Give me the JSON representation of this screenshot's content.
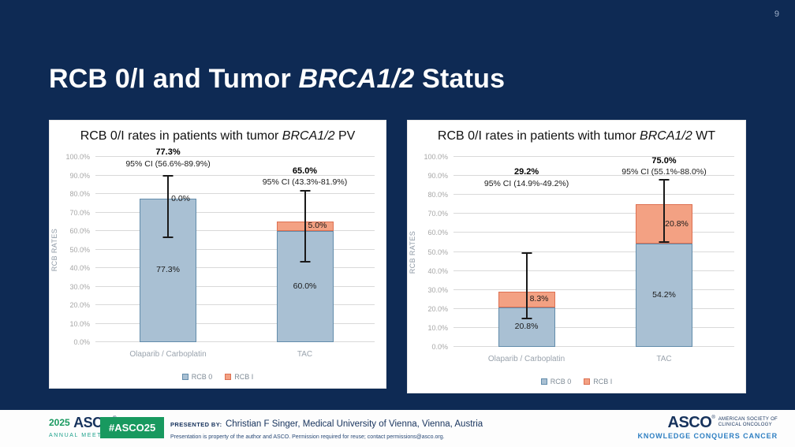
{
  "page": {
    "number": "9"
  },
  "title": {
    "prefix": "RCB 0/I and Tumor ",
    "italic": "BRCA1/2",
    "suffix": " Status"
  },
  "colors": {
    "background": "#0e2a54",
    "rcb0_fill": "#a9c0d3",
    "rcb0_border": "#628cab",
    "rcb1_fill": "#f3a183",
    "rcb1_border": "#dd7052",
    "error_bar": "#1a1a1a",
    "gridline": "#d9d9d9",
    "badge_green": "#18995f",
    "navy_text": "#16325c",
    "tagline_blue": "#2e7fc2"
  },
  "chart_data": [
    {
      "type": "bar",
      "stacked": true,
      "title_prefix": "RCB 0/I rates in patients with tumor ",
      "title_italic": "BRCA1/2",
      "title_suffix": " PV",
      "ylabel": "RCB RATES",
      "ylim": [
        0,
        100
      ],
      "grid": true,
      "legend_position": "bottom",
      "yticks": [
        {
          "value": 0,
          "label": "0.0%"
        },
        {
          "value": 10,
          "label": "10.0%"
        },
        {
          "value": 20,
          "label": "20.0%"
        },
        {
          "value": 30,
          "label": "30.0%"
        },
        {
          "value": 40,
          "label": "40.0%"
        },
        {
          "value": 50,
          "label": "50.0%"
        },
        {
          "value": 60,
          "label": "60.0%"
        },
        {
          "value": 70,
          "label": "70.0%"
        },
        {
          "value": 80,
          "label": "80.0%"
        },
        {
          "value": 90,
          "label": "90.0%"
        },
        {
          "value": 100,
          "label": "100.0%"
        }
      ],
      "categories": [
        "Olaparib / Carboplatin",
        "TAC"
      ],
      "series": [
        {
          "name": "RCB 0",
          "values": [
            77.3,
            60.0
          ],
          "labels": [
            "77.3%",
            "60.0%"
          ],
          "fill": "#a9c0d3",
          "border": "#628cab"
        },
        {
          "name": "RCB I",
          "values": [
            0.0,
            5.0
          ],
          "labels": [
            "0.0%",
            "5.0%"
          ],
          "fill": "#f3a183",
          "border": "#dd7052"
        }
      ],
      "error_bars": [
        {
          "low": 56.6,
          "high": 89.9
        },
        {
          "low": 43.3,
          "high": 81.9
        }
      ],
      "annotations": [
        {
          "value": "77.3%",
          "ci": "95% CI (56.6%-89.9%)",
          "value_bottom": 100,
          "ci_bottom": 93.5
        },
        {
          "value": "65.0%",
          "ci": "95% CI (43.3%-81.9%)",
          "value_bottom": 90,
          "ci_bottom": 84
        }
      ]
    },
    {
      "type": "bar",
      "stacked": true,
      "title_prefix": "RCB 0/I rates in patients with tumor ",
      "title_italic": "BRCA1/2",
      "title_suffix": " WT",
      "ylabel": "RCB RATES",
      "ylim": [
        0,
        100
      ],
      "grid": true,
      "legend_position": "bottom",
      "yticks": [
        {
          "value": 0,
          "label": "0.0%"
        },
        {
          "value": 10,
          "label": "10.0%"
        },
        {
          "value": 20,
          "label": "20.0%"
        },
        {
          "value": 30,
          "label": "30.0%"
        },
        {
          "value": 40,
          "label": "40.0%"
        },
        {
          "value": 50,
          "label": "50.0%"
        },
        {
          "value": 60,
          "label": "60.0%"
        },
        {
          "value": 70,
          "label": "70.0%"
        },
        {
          "value": 80,
          "label": "80.0%"
        },
        {
          "value": 90,
          "label": "90.0%"
        },
        {
          "value": 100,
          "label": "100.0%"
        }
      ],
      "categories": [
        "Olaparib / Carboplatin",
        "TAC"
      ],
      "series": [
        {
          "name": "RCB 0",
          "values": [
            20.8,
            54.2
          ],
          "labels": [
            "20.8%",
            "54.2%"
          ],
          "fill": "#a9c0d3",
          "border": "#628cab"
        },
        {
          "name": "RCB I",
          "values": [
            8.3,
            20.8
          ],
          "labels": [
            "8.3%",
            "20.8%"
          ],
          "fill": "#f3a183",
          "border": "#dd7052"
        }
      ],
      "error_bars": [
        {
          "low": 14.9,
          "high": 49.2
        },
        {
          "low": 55.1,
          "high": 88.0
        }
      ],
      "annotations": [
        {
          "value": "29.2%",
          "ci": "95% CI (14.9%-49.2%)",
          "value_bottom": 89.5,
          "ci_bottom": 83.5
        },
        {
          "value": "75.0%",
          "ci": "95% CI (55.1%-88.0%)",
          "value_bottom": 95.5,
          "ci_bottom": 89.8
        }
      ]
    }
  ],
  "footer": {
    "logo_year": "2025",
    "logo_asco": "ASCO",
    "logo_reg": "®",
    "logo_meeting": "ANNUAL MEETING",
    "hashtag": "#ASCO25",
    "presented_by_label": "PRESENTED BY:",
    "presenter": "Christian F Singer, Medical University of Vienna, Vienna, Austria",
    "disclaimer": "Presentation is property of the author and ASCO. Permission required for reuse; contact permissions@asco.org.",
    "asco_logo": "ASCO",
    "asco_reg": "®",
    "asco_society_line1": "AMERICAN SOCIETY OF",
    "asco_society_line2": "CLINICAL ONCOLOGY",
    "asco_tagline": "KNOWLEDGE CONQUERS CANCER"
  }
}
